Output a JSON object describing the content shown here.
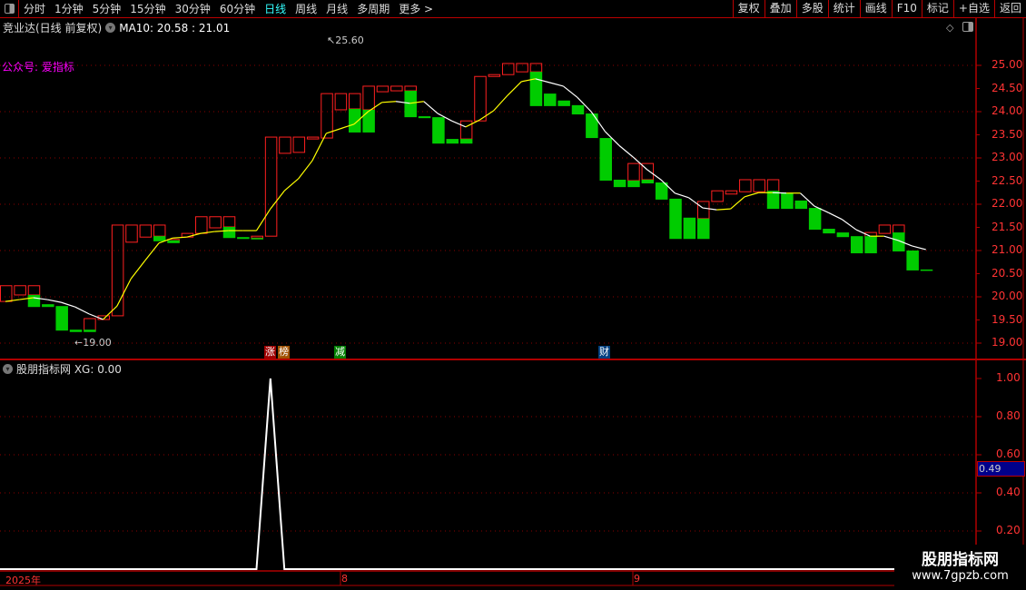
{
  "toolbar": {
    "periods": [
      "分时",
      "1分钟",
      "5分钟",
      "15分钟",
      "30分钟",
      "60分钟",
      "日线",
      "周线",
      "月线",
      "多周期",
      "更多 >"
    ],
    "active_period": "日线",
    "buttons": [
      "复权",
      "叠加",
      "多股",
      "统计",
      "画线",
      "F10",
      "标记",
      "+自选",
      "返回"
    ]
  },
  "chart": {
    "title": "竞业达(日线 前复权)",
    "ma_label": "MA10: 20.58 : 21.01",
    "gzh_label": "公众号: 爱指标",
    "high_label": "↖25.60",
    "low_label": "←19.00",
    "tags": [
      {
        "text": "涨",
        "color": "#a00000"
      },
      {
        "text": "榜",
        "color": "#a05000"
      },
      {
        "text": "减",
        "color": "#008000"
      },
      {
        "text": "财",
        "color": "#003f7f"
      }
    ],
    "price_axis": [
      "25.00",
      "24.50",
      "24.00",
      "23.50",
      "23.00",
      "22.50",
      "22.00",
      "21.50",
      "21.00",
      "20.50",
      "20.00",
      "19.50",
      "19.00"
    ],
    "colors": {
      "up": "#ff2020",
      "down": "#00cc00",
      "ma_rise": "#ffff00",
      "ma_fall": "#ffffff",
      "axis": "#ff3333",
      "border": "#b00000"
    },
    "candles": [
      [
        [
          "r",
          20.24,
          19.9
        ]
      ],
      [
        [
          "r",
          20.24,
          20.04
        ]
      ],
      [
        [
          "r",
          20.24,
          20.04
        ],
        [
          "g",
          20.04,
          19.78
        ]
      ],
      [
        [
          "g",
          19.84,
          19.78
        ]
      ],
      [
        [
          "g",
          19.8,
          19.27
        ]
      ],
      [
        [
          "g",
          19.29,
          19.24
        ]
      ],
      [
        [
          "r",
          19.53,
          19.27
        ],
        [
          "g",
          19.29,
          19.24
        ]
      ],
      [
        [
          "r",
          19.59,
          19.51
        ]
      ],
      [
        [
          "r",
          21.55,
          19.59
        ]
      ],
      [
        [
          "r",
          21.55,
          21.18
        ]
      ],
      [
        [
          "r",
          21.55,
          21.29
        ]
      ],
      [
        [
          "r",
          21.55,
          21.31
        ],
        [
          "g",
          21.31,
          21.2
        ]
      ],
      [
        [
          "r",
          21.24,
          21.18
        ],
        [
          "g",
          21.22,
          21.16
        ]
      ],
      [
        [
          "r",
          21.37,
          21.29
        ]
      ],
      [
        [
          "r",
          21.73,
          21.37
        ]
      ],
      [
        [
          "r",
          21.73,
          21.49
        ]
      ],
      [
        [
          "r",
          21.73,
          21.51
        ],
        [
          "g",
          21.51,
          21.27
        ]
      ],
      [
        [
          "g",
          21.29,
          21.25
        ]
      ],
      [
        [
          "r",
          21.31,
          21.27
        ],
        [
          "g",
          21.27,
          21.24
        ]
      ],
      [
        [
          "r",
          23.45,
          21.31
        ]
      ],
      [
        [
          "r",
          23.45,
          23.1
        ]
      ],
      [
        [
          "r",
          23.45,
          23.12
        ]
      ],
      [
        [
          "r",
          23.45,
          23.41
        ]
      ],
      [
        [
          "r",
          24.39,
          23.43
        ]
      ],
      [
        [
          "r",
          24.39,
          24.04
        ]
      ],
      [
        [
          "r",
          24.39,
          24.06
        ],
        [
          "g",
          24.06,
          23.55
        ]
      ],
      [
        [
          "r",
          24.55,
          24.04
        ],
        [
          "g",
          24.04,
          23.55
        ]
      ],
      [
        [
          "r",
          24.55,
          24.43
        ]
      ],
      [
        [
          "r",
          24.55,
          24.45
        ]
      ],
      [
        [
          "r",
          24.55,
          24.45
        ],
        [
          "g",
          24.45,
          23.88
        ]
      ],
      [
        [
          "g",
          23.9,
          23.86
        ]
      ],
      [
        [
          "g",
          23.88,
          23.31
        ]
      ],
      [
        [
          "g",
          23.41,
          23.31
        ]
      ],
      [
        [
          "r",
          23.8,
          23.41
        ],
        [
          "g",
          23.41,
          23.31
        ]
      ],
      [
        [
          "r",
          24.76,
          23.8
        ]
      ],
      [
        [
          "r",
          24.8,
          24.76
        ]
      ],
      [
        [
          "r",
          25.04,
          24.8
        ]
      ],
      [
        [
          "r",
          25.04,
          24.86
        ]
      ],
      [
        [
          "r",
          25.04,
          24.86
        ],
        [
          "g",
          24.86,
          24.12
        ]
      ],
      [
        [
          "g",
          24.39,
          24.12
        ]
      ],
      [
        [
          "g",
          24.24,
          24.12
        ]
      ],
      [
        [
          "g",
          24.14,
          23.94
        ]
      ],
      [
        [
          "g",
          23.96,
          23.43
        ]
      ],
      [
        [
          "g",
          23.43,
          22.51
        ]
      ],
      [
        [
          "g",
          22.53,
          22.37
        ]
      ],
      [
        [
          "r",
          22.88,
          22.51
        ],
        [
          "g",
          22.51,
          22.37
        ]
      ],
      [
        [
          "r",
          22.88,
          22.53
        ],
        [
          "g",
          22.53,
          22.45
        ]
      ],
      [
        [
          "g",
          22.47,
          22.1
        ]
      ],
      [
        [
          "g",
          22.12,
          21.25
        ]
      ],
      [
        [
          "g",
          21.71,
          21.25
        ]
      ],
      [
        [
          "r",
          22.06,
          21.69
        ],
        [
          "g",
          21.69,
          21.25
        ]
      ],
      [
        [
          "r",
          22.29,
          22.06
        ]
      ],
      [
        [
          "r",
          22.29,
          22.22
        ]
      ],
      [
        [
          "r",
          22.53,
          22.27
        ]
      ],
      [
        [
          "r",
          22.53,
          22.27
        ]
      ],
      [
        [
          "r",
          22.53,
          22.27
        ],
        [
          "g",
          22.29,
          21.9
        ]
      ],
      [
        [
          "g",
          22.24,
          21.9
        ]
      ],
      [
        [
          "g",
          22.08,
          21.9
        ]
      ],
      [
        [
          "g",
          21.92,
          21.45
        ]
      ],
      [
        [
          "g",
          21.47,
          21.37
        ]
      ],
      [
        [
          "g",
          21.39,
          21.29
        ]
      ],
      [
        [
          "g",
          21.31,
          20.94
        ]
      ],
      [
        [
          "r",
          21.39,
          21.29
        ],
        [
          "g",
          21.31,
          20.94
        ]
      ],
      [
        [
          "r",
          21.55,
          21.37
        ]
      ],
      [
        [
          "r",
          21.55,
          21.37
        ],
        [
          "g",
          21.39,
          20.98
        ]
      ],
      [
        [
          "g",
          21.0,
          20.57
        ]
      ],
      [
        [
          "g",
          20.59,
          20.57
        ]
      ]
    ],
    "ma10": [
      19.9,
      19.94,
      19.98,
      19.94,
      19.88,
      19.78,
      19.63,
      19.51,
      19.8,
      20.39,
      20.78,
      21.16,
      21.27,
      21.29,
      21.37,
      21.41,
      21.43,
      21.43,
      21.43,
      21.9,
      22.29,
      22.55,
      22.94,
      23.53,
      23.63,
      23.73,
      24.0,
      24.2,
      24.22,
      24.18,
      24.22,
      23.96,
      23.8,
      23.67,
      23.82,
      24.02,
      24.35,
      24.65,
      24.71,
      24.63,
      24.55,
      24.31,
      24.0,
      23.57,
      23.27,
      23.02,
      22.75,
      22.53,
      22.24,
      22.14,
      21.92,
      21.88,
      21.9,
      22.16,
      22.25,
      22.25,
      22.24,
      22.24,
      21.96,
      21.82,
      21.67,
      21.45,
      21.31,
      21.31,
      21.22,
      21.1,
      21.02
    ]
  },
  "indicator": {
    "title": "股朋指标网 XG: 0.00",
    "axis": [
      "1.00",
      "0.80",
      "0.60",
      "0.40",
      "0.20"
    ],
    "current_value": "0.49",
    "xg_peak_index": 19
  },
  "dates": [
    "2025年",
    "8",
    "9"
  ],
  "watermark": {
    "name": "股朋指标网",
    "url": "www.7gpzb.com"
  }
}
